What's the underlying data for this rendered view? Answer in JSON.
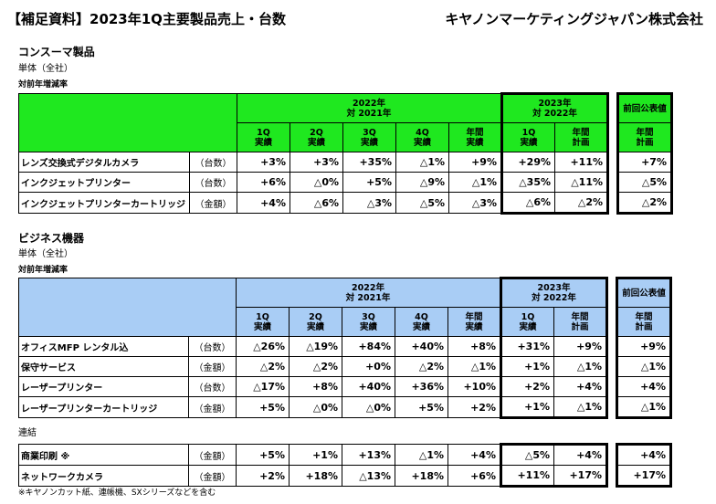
{
  "header": {
    "title": "【補足資料】2023年1Q主要製品売上・台数",
    "company": "キヤノンマーケティングジャパン株式会社"
  },
  "consumer": {
    "section_title": "コンスーマ製品",
    "scope": "単体（全社）",
    "rate_label": "対前年増減率",
    "header_color": "#1fe81f",
    "period_2022": "2022年",
    "period_2022_sub": "対 2021年",
    "period_2023": "2023年",
    "period_2023_sub": "対 2022年",
    "prev_label": "前回公表値",
    "cols": [
      {
        "top": "1Q",
        "bottom": "実績"
      },
      {
        "top": "2Q",
        "bottom": "実績"
      },
      {
        "top": "3Q",
        "bottom": "実績"
      },
      {
        "top": "4Q",
        "bottom": "実績"
      },
      {
        "top": "年間",
        "bottom": "実績"
      },
      {
        "top": "1Q",
        "bottom": "実績"
      },
      {
        "top": "年間",
        "bottom": "計画"
      },
      {
        "top": "年間",
        "bottom": "計画"
      }
    ],
    "rows": [
      {
        "name": "レンズ交換式デジタルカメラ",
        "unit": "（台数）",
        "values": [
          "+3%",
          "+3%",
          "+35%",
          "△1%",
          "+9%",
          "+29%",
          "+11%",
          "+7%"
        ]
      },
      {
        "name": "インクジェットプリンター",
        "unit": "（台数）",
        "values": [
          "+6%",
          "△0%",
          "+5%",
          "△9%",
          "△1%",
          "△35%",
          "△11%",
          "△5%"
        ]
      },
      {
        "name": "インクジェットプリンターカートリッジ",
        "unit": "（金額）",
        "values": [
          "+4%",
          "△6%",
          "△3%",
          "△5%",
          "△3%",
          "△6%",
          "△2%",
          "△2%"
        ]
      }
    ]
  },
  "business": {
    "section_title": "ビジネス機器",
    "scope": "単体（全社）",
    "rate_label": "対前年増減率",
    "header_color": "#a9cdf5",
    "period_2022": "2022年",
    "period_2022_sub": "対 2021年",
    "period_2023": "2023年",
    "period_2023_sub": "対 2022年",
    "prev_label": "前回公表値",
    "cols": [
      {
        "top": "1Q",
        "bottom": "実績"
      },
      {
        "top": "2Q",
        "bottom": "実績"
      },
      {
        "top": "3Q",
        "bottom": "実績"
      },
      {
        "top": "4Q",
        "bottom": "実績"
      },
      {
        "top": "年間",
        "bottom": "実績"
      },
      {
        "top": "1Q",
        "bottom": "実績"
      },
      {
        "top": "年間",
        "bottom": "計画"
      },
      {
        "top": "年間",
        "bottom": "計画"
      }
    ],
    "rows": [
      {
        "name": "オフィスMFP レンタル込",
        "unit": "（台数）",
        "values": [
          "△26%",
          "△19%",
          "+84%",
          "+40%",
          "+8%",
          "+31%",
          "+9%",
          "+9%"
        ]
      },
      {
        "name": "保守サービス",
        "unit": "（金額）",
        "values": [
          "△2%",
          "△2%",
          "+0%",
          "△2%",
          "△1%",
          "+1%",
          "△1%",
          "△1%"
        ]
      },
      {
        "name": "レーザープリンター",
        "unit": "（台数）",
        "values": [
          "△17%",
          "+8%",
          "+40%",
          "+36%",
          "+10%",
          "+2%",
          "+4%",
          "+4%"
        ]
      },
      {
        "name": "レーザープリンターカートリッジ",
        "unit": "（金額）",
        "values": [
          "+5%",
          "△0%",
          "△0%",
          "+5%",
          "+2%",
          "+1%",
          "△1%",
          "△1%"
        ]
      }
    ],
    "consolidated_label": "連結",
    "consolidated_rows": [
      {
        "name": "商業印刷 ※",
        "unit": "（金額）",
        "values": [
          "+5%",
          "+1%",
          "+13%",
          "△1%",
          "+4%",
          "△5%",
          "+4%",
          "+4%"
        ]
      },
      {
        "name": "ネットワークカメラ",
        "unit": "（金額）",
        "values": [
          "+2%",
          "+18%",
          "△13%",
          "+18%",
          "+6%",
          "+11%",
          "+17%",
          "+17%"
        ]
      }
    ],
    "footnote": "※キヤノンカット紙、連帳機、SXシリーズなどを含む"
  }
}
